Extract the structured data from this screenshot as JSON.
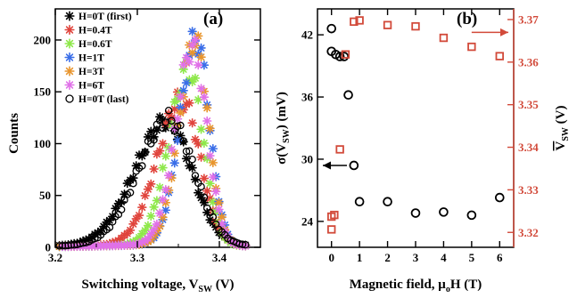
{
  "chart_data": [
    {
      "type": "scatter",
      "panel_label": "(a)",
      "xlabel": "Switching voltage, V",
      "xlabel_sub": "SW",
      "xlabel_unit": " (V)",
      "ylabel": "Counts",
      "xlim": [
        3.2,
        3.45
      ],
      "ylim": [
        0,
        230
      ],
      "xticks": [
        "3.2",
        "3.3",
        "3.4"
      ],
      "xtick_values": [
        3.2,
        3.3,
        3.4
      ],
      "yticks": [
        "0",
        "50",
        "100",
        "150",
        "200"
      ],
      "ytick_values": [
        0,
        50,
        100,
        150,
        200
      ],
      "legend_position": "top-left",
      "series": [
        {
          "name": "H=0T (first)",
          "marker": "asterisk",
          "color": "#000000",
          "center": 3.337,
          "peak": 118,
          "sl": 0.04,
          "sr": 0.03
        },
        {
          "name": "H=0.4T",
          "marker": "asterisk",
          "color": "#e0443c",
          "center": 3.355,
          "peak": 140,
          "sl": 0.03,
          "sr": 0.022
        },
        {
          "name": "H=0.6T",
          "marker": "asterisk",
          "color": "#8ee84a",
          "center": 3.363,
          "peak": 168,
          "sl": 0.024,
          "sr": 0.018
        },
        {
          "name": "H=1T",
          "marker": "asterisk",
          "color": "#3a6ee8",
          "center": 3.372,
          "peak": 198,
          "sl": 0.02,
          "sr": 0.016
        },
        {
          "name": "H=3T",
          "marker": "asterisk",
          "color": "#e8952e",
          "center": 3.371,
          "peak": 196,
          "sl": 0.02,
          "sr": 0.016
        },
        {
          "name": "H=6T",
          "marker": "asterisk",
          "color": "#e071e8",
          "center": 3.368,
          "peak": 190,
          "sl": 0.021,
          "sr": 0.017
        },
        {
          "name": "H=0T (last)",
          "marker": "circle",
          "color": "#000000",
          "center": 3.34,
          "peak": 120,
          "sl": 0.038,
          "sr": 0.03
        }
      ]
    },
    {
      "type": "scatter",
      "panel_label": "(b)",
      "xlabel": "Magnetic field, μ",
      "xlabel_sub": "o",
      "xlabel_unit": "H (T)",
      "ylabel_left": "σ(V",
      "ylabel_left_sub": "SW",
      "ylabel_left_unit": ")  (mV)",
      "ylabel_right": "V",
      "ylabel_right_sub": "SW",
      "ylabel_right_unit": " (V)",
      "xlim": [
        -0.5,
        6.5
      ],
      "ylim_left": [
        21.5,
        44.5
      ],
      "ylim_right": [
        3.3165,
        3.3725
      ],
      "xticks": [
        "0",
        "1",
        "2",
        "3",
        "4",
        "5",
        "6"
      ],
      "xtick_values": [
        0,
        1,
        2,
        3,
        4,
        5,
        6
      ],
      "yticks_left": [
        "24",
        "30",
        "36",
        "42"
      ],
      "ytick_left_values": [
        24,
        30,
        36,
        42
      ],
      "yticks_right": [
        "3.32",
        "3.33",
        "3.34",
        "3.35",
        "3.36",
        "3.37"
      ],
      "ytick_right_values": [
        3.32,
        3.33,
        3.34,
        3.35,
        3.36,
        3.37
      ],
      "series": [
        {
          "name": "σ(VSW)",
          "axis": "left",
          "marker": "circle",
          "color": "#000000",
          "x": [
            0,
            0,
            0.15,
            0.3,
            0.45,
            0.6,
            0.8,
            1,
            2,
            3,
            4,
            5,
            6
          ],
          "y": [
            42.6,
            40.4,
            40.1,
            39.9,
            39.9,
            36.2,
            29.4,
            25.9,
            25.9,
            24.8,
            24.9,
            24.6,
            26.3
          ]
        },
        {
          "name": "mean VSW",
          "axis": "right",
          "marker": "square",
          "color": "#d24a3a",
          "x": [
            0,
            0,
            0.1,
            0.3,
            0.5,
            0.8,
            1,
            2,
            3,
            4,
            5,
            6
          ],
          "y": [
            3.3207,
            3.3237,
            3.3241,
            3.3395,
            3.3618,
            3.3695,
            3.3698,
            3.3687,
            3.3684,
            3.3657,
            3.3636,
            3.3614
          ]
        }
      ],
      "arrows": [
        {
          "direction": "left",
          "target_axis": "left",
          "color": "#000000",
          "at_y": 29.4
        },
        {
          "direction": "right",
          "target_axis": "right",
          "color": "#d24a3a",
          "at_y": 3.367
        }
      ]
    }
  ]
}
